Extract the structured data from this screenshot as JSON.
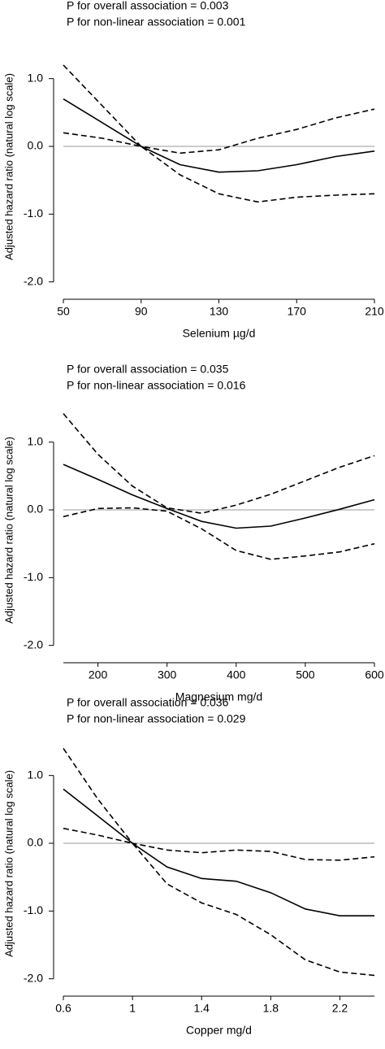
{
  "chart_data": [
    {
      "type": "line",
      "subtitle": [
        "P for overall association = 0.003",
        "P for non-linear association = 0.001"
      ],
      "xlabel": "Selenium µg/d",
      "ylabel": "Adjusted hazard ratio (natural log scale)",
      "x": [
        50,
        70,
        90,
        110,
        130,
        150,
        170,
        190,
        210
      ],
      "series": [
        {
          "color": "#000000",
          "dash": false,
          "values": [
            0.7,
            0.35,
            0,
            -0.27,
            -0.38,
            -0.36,
            -0.27,
            -0.15,
            -0.07
          ]
        },
        {
          "color": "#000000",
          "dash": true,
          "values": [
            1.2,
            0.6,
            0,
            -0.1,
            -0.05,
            0.12,
            0.25,
            0.42,
            0.55
          ]
        },
        {
          "color": "#000000",
          "dash": true,
          "values": [
            0.2,
            0.12,
            0,
            -0.42,
            -0.7,
            -0.82,
            -0.75,
            -0.72,
            -0.7
          ]
        }
      ],
      "reference_line": 0,
      "reference_color": "#999999",
      "xlim": [
        50,
        210
      ],
      "xticks": [
        50,
        90,
        130,
        170,
        210
      ],
      "ylim": [
        -2.1,
        1.5
      ],
      "yticks": [
        {
          "value": -2,
          "label": "-2.0"
        },
        {
          "value": -1,
          "label": "-1.0"
        },
        {
          "value": 0,
          "label": "0.0"
        },
        {
          "value": 1,
          "label": "1.0"
        }
      ]
    },
    {
      "type": "line",
      "subtitle": [
        "P for overall association = 0.035",
        "P for non-linear association = 0.016"
      ],
      "xlabel": "Magnesium mg/d",
      "ylabel": "Adjusted hazard ratio (natural log scale)",
      "x": [
        150,
        200,
        250,
        300,
        350,
        400,
        450,
        500,
        550,
        600
      ],
      "series": [
        {
          "color": "#000000",
          "dash": false,
          "values": [
            0.67,
            0.45,
            0.22,
            0.02,
            -0.17,
            -0.27,
            -0.24,
            -0.12,
            0.01,
            0.15
          ]
        },
        {
          "color": "#000000",
          "dash": true,
          "values": [
            1.42,
            0.82,
            0.35,
            0.03,
            -0.05,
            0.07,
            0.23,
            0.43,
            0.63,
            0.8
          ]
        },
        {
          "color": "#000000",
          "dash": true,
          "values": [
            -0.1,
            0.02,
            0.03,
            -0.02,
            -0.28,
            -0.6,
            -0.73,
            -0.68,
            -0.62,
            -0.5
          ]
        }
      ],
      "reference_line": 0,
      "reference_color": "#999999",
      "xlim": [
        150,
        600
      ],
      "xticks": [
        200,
        300,
        400,
        500,
        600
      ],
      "ylim": [
        -2.1,
        1.5
      ],
      "yticks": [
        {
          "value": -2,
          "label": "-2.0"
        },
        {
          "value": -1,
          "label": "-1.0"
        },
        {
          "value": 0,
          "label": "0.0"
        },
        {
          "value": 1,
          "label": "1.0"
        }
      ]
    },
    {
      "type": "line",
      "subtitle": [
        "P for overall association = 0.036",
        "P for non-linear association = 0.029"
      ],
      "xlabel": "Copper mg/d",
      "ylabel": "Adjusted hazard ratio (natural log scale)",
      "x": [
        0.6,
        0.8,
        1.0,
        1.2,
        1.4,
        1.6,
        1.8,
        2.0,
        2.2,
        2.4
      ],
      "series": [
        {
          "color": "#000000",
          "dash": false,
          "values": [
            0.8,
            0.4,
            0,
            -0.35,
            -0.52,
            -0.56,
            -0.73,
            -0.97,
            -1.07,
            -1.07
          ]
        },
        {
          "color": "#000000",
          "dash": true,
          "values": [
            1.4,
            0.65,
            0,
            -0.1,
            -0.14,
            -0.1,
            -0.12,
            -0.24,
            -0.25,
            -0.2
          ]
        },
        {
          "color": "#000000",
          "dash": true,
          "values": [
            0.22,
            0.12,
            0,
            -0.6,
            -0.88,
            -1.05,
            -1.35,
            -1.72,
            -1.9,
            -1.95
          ]
        }
      ],
      "reference_line": 0,
      "reference_color": "#999999",
      "xlim": [
        0.6,
        2.4
      ],
      "xticks": [
        0.6,
        1,
        1.4,
        1.8,
        2.2
      ],
      "ylim": [
        -2.1,
        1.5
      ],
      "yticks": [
        {
          "value": -2,
          "label": "-2.0"
        },
        {
          "value": -1,
          "label": "-1.0"
        },
        {
          "value": 0,
          "label": "0.0"
        },
        {
          "value": 1,
          "label": "1.0"
        }
      ]
    }
  ]
}
